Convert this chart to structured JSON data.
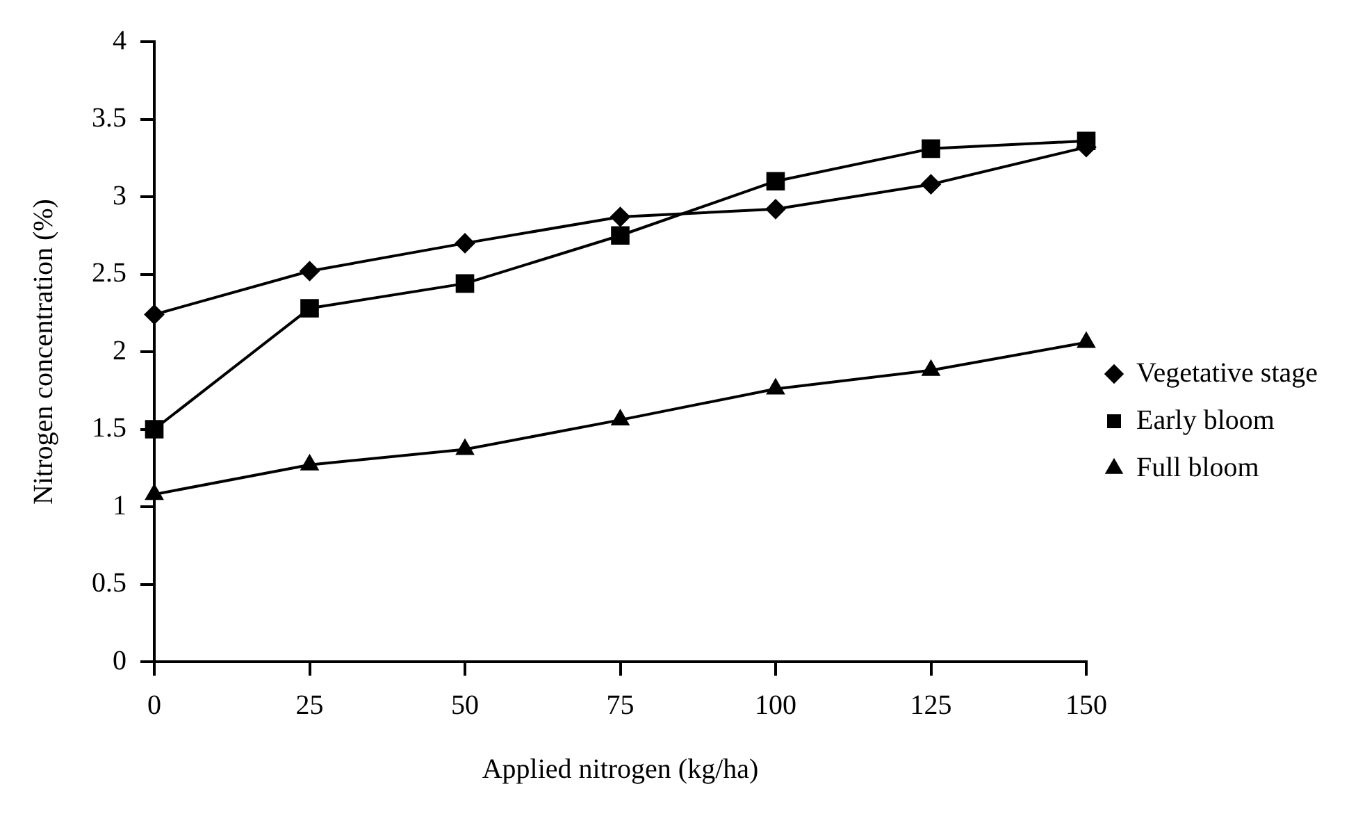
{
  "chart_data": {
    "type": "line",
    "xlabel": "Applied nitrogen (kg/ha)",
    "ylabel": "Nitrogen concentration (%)",
    "x": [
      0,
      25,
      50,
      75,
      100,
      125,
      150
    ],
    "xlim": [
      0,
      150
    ],
    "xticks": [
      0,
      25,
      50,
      75,
      100,
      125,
      150
    ],
    "ylim": [
      0,
      4
    ],
    "yticks": [
      0,
      0.5,
      1,
      1.5,
      2,
      2.5,
      3,
      3.5,
      4
    ],
    "grid": false,
    "legend": "right",
    "line_style": "solid",
    "series": [
      {
        "name": "Vegetative stage",
        "color": "#000000",
        "marker": "diamond",
        "values": [
          2.24,
          2.52,
          2.7,
          2.87,
          2.92,
          3.08,
          3.32
        ]
      },
      {
        "name": "Early bloom",
        "color": "#000000",
        "marker": "square",
        "values": [
          1.5,
          2.28,
          2.44,
          2.75,
          3.1,
          3.31,
          3.36
        ]
      },
      {
        "name": "Full bloom",
        "color": "#000000",
        "marker": "triangle",
        "values": [
          1.08,
          1.27,
          1.37,
          1.56,
          1.76,
          1.88,
          2.06
        ]
      }
    ]
  }
}
